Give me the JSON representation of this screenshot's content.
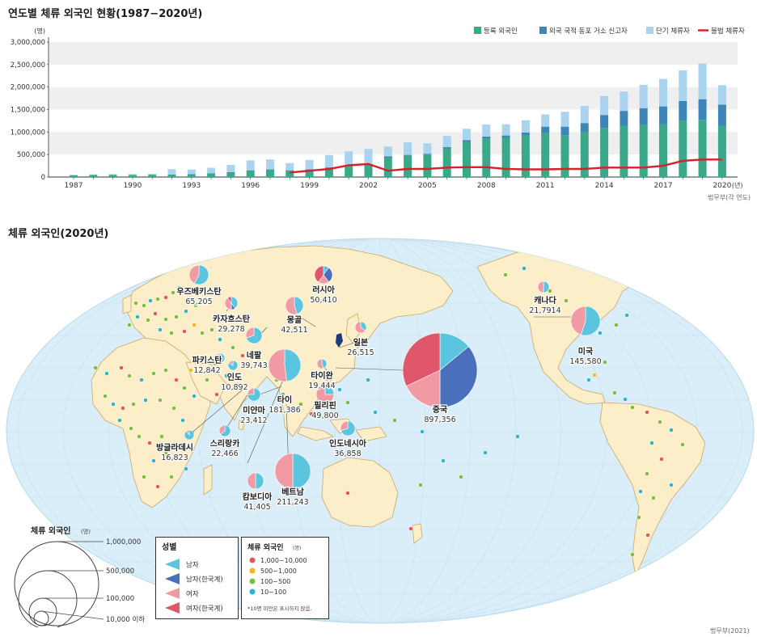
{
  "chart": {
    "title": "연도별 체류 외국인 현황(1987−2020년)",
    "yunit": "(명)",
    "xunit": "(년)",
    "source": "법무부(각 연도)",
    "legend": [
      "등록 외국인",
      "외국 국적 동포 거소 신고자",
      "단기 체류자",
      "불법 체류자"
    ],
    "colors": {
      "registered": "#3aa98a",
      "overseas_korean": "#3f86b8",
      "short_term": "#a9d3ee",
      "illegal": "#d7202a"
    }
  },
  "chart_data": {
    "type": "bar",
    "title": "연도별 체류 외국인 현황(1987−2020년)",
    "ylabel": "(명)",
    "xlabel": "(년)",
    "ylim": [
      0,
      3000000
    ],
    "yticks": [
      "0",
      "500,000",
      "1,000,000",
      "1,500,000",
      "2,000,000",
      "2,500,000",
      "3,000,000"
    ],
    "xticks": [
      "1987",
      "1990",
      "1993",
      "1996",
      "1999",
      "2002",
      "2005",
      "2008",
      "2011",
      "2014",
      "2017",
      "2020"
    ],
    "categories": [
      1987,
      1988,
      1989,
      1990,
      1991,
      1992,
      1993,
      1994,
      1995,
      1996,
      1997,
      1998,
      1999,
      2000,
      2001,
      2002,
      2003,
      2004,
      2005,
      2006,
      2007,
      2008,
      2009,
      2010,
      2011,
      2012,
      2013,
      2014,
      2015,
      2016,
      2017,
      2018,
      2019,
      2020
    ],
    "series": [
      {
        "name": "등록 외국인",
        "type": "stacked-bar",
        "values": [
          40000,
          45000,
          50000,
          49000,
          52000,
          55000,
          67000,
          85000,
          110000,
          150000,
          170000,
          150000,
          170000,
          210000,
          230000,
          260000,
          440000,
          470000,
          490000,
          630000,
          780000,
          850000,
          870000,
          920000,
          980000,
          930000,
          990000,
          1090000,
          1140000,
          1160000,
          1170000,
          1250000,
          1270000,
          1140000
        ]
      },
      {
        "name": "외국 국적 동포 거소 신고자",
        "type": "stacked-bar",
        "values": [
          0,
          0,
          0,
          0,
          0,
          0,
          0,
          0,
          0,
          0,
          0,
          0,
          0,
          8000,
          12000,
          15000,
          18000,
          22000,
          27000,
          34000,
          42000,
          48000,
          53000,
          70000,
          140000,
          190000,
          210000,
          290000,
          330000,
          370000,
          400000,
          440000,
          460000,
          470000
        ]
      },
      {
        "name": "단기 체류자",
        "type": "stacked-bar",
        "values": [
          10000,
          15000,
          15000,
          17000,
          20000,
          120000,
          100000,
          120000,
          160000,
          220000,
          220000,
          160000,
          210000,
          270000,
          330000,
          350000,
          220000,
          280000,
          230000,
          250000,
          250000,
          270000,
          250000,
          270000,
          270000,
          330000,
          380000,
          420000,
          430000,
          520000,
          610000,
          680000,
          790000,
          430000
        ]
      },
      {
        "name": "불법 체류자",
        "type": "line",
        "values": [
          null,
          null,
          null,
          null,
          null,
          null,
          null,
          null,
          null,
          null,
          null,
          100000,
          140000,
          180000,
          260000,
          290000,
          140000,
          180000,
          180000,
          210000,
          220000,
          220000,
          180000,
          170000,
          170000,
          180000,
          180000,
          210000,
          210000,
          210000,
          250000,
          360000,
          390000,
          390000
        ]
      }
    ]
  },
  "map": {
    "title": "체류 외국인(2020년)",
    "source": "법무부(2021)",
    "countries": [
      {
        "name": "중국",
        "value": "897,356"
      },
      {
        "name": "베트남",
        "value": "211,243"
      },
      {
        "name": "타이",
        "value": "181,386"
      },
      {
        "name": "미국",
        "value": "145,580"
      },
      {
        "name": "우즈베키스탄",
        "value": "65,205"
      },
      {
        "name": "러시아",
        "value": "50,410"
      },
      {
        "name": "필리핀",
        "value": "49,800"
      },
      {
        "name": "몽골",
        "value": "42,511"
      },
      {
        "name": "캄보디아",
        "value": "41,405"
      },
      {
        "name": "네팔",
        "value": "39,743"
      },
      {
        "name": "인도네시아",
        "value": "36,858"
      },
      {
        "name": "카자흐스탄",
        "value": "29,278"
      },
      {
        "name": "일본",
        "value": "26,515"
      },
      {
        "name": "미얀마",
        "value": "23,412"
      },
      {
        "name": "스리랑카",
        "value": "22,466"
      },
      {
        "name": "캐나다",
        "value": "21,7914"
      },
      {
        "name": "타이완",
        "value": "19,444"
      },
      {
        "name": "방글라데시",
        "value": "16,823"
      },
      {
        "name": "파키스탄",
        "value": "12,842"
      },
      {
        "name": "인도",
        "value": "10,892"
      }
    ],
    "size_legend": {
      "title": "체류 외국인",
      "unit": "(명)",
      "levels": [
        "1,000,000",
        "500,000",
        "100,000",
        "10,000 이하"
      ]
    },
    "gender_legend": {
      "title": "성별",
      "items": [
        {
          "label": "남자",
          "color": "#5bc5e0"
        },
        {
          "label": "남자(한국계)",
          "color": "#4a6fbd"
        },
        {
          "label": "여자",
          "color": "#f29aa4"
        },
        {
          "label": "여자(한국계)",
          "color": "#e0566a"
        }
      ]
    },
    "dot_legend": {
      "title": "체류 외국인",
      "unit": "(명)",
      "items": [
        {
          "label": "1,000~10,000",
          "color": "#e8555d"
        },
        {
          "label": "500~1,000",
          "color": "#f4b619"
        },
        {
          "label": "100~500",
          "color": "#79bf3e"
        },
        {
          "label": "10~100",
          "color": "#2bb5d2"
        }
      ],
      "note": "*10명 미만은 표시하지 않음."
    },
    "colors": {
      "ocean": "#d9eef8",
      "land": "#fbeec8",
      "korea": "#1f3a7a"
    }
  }
}
